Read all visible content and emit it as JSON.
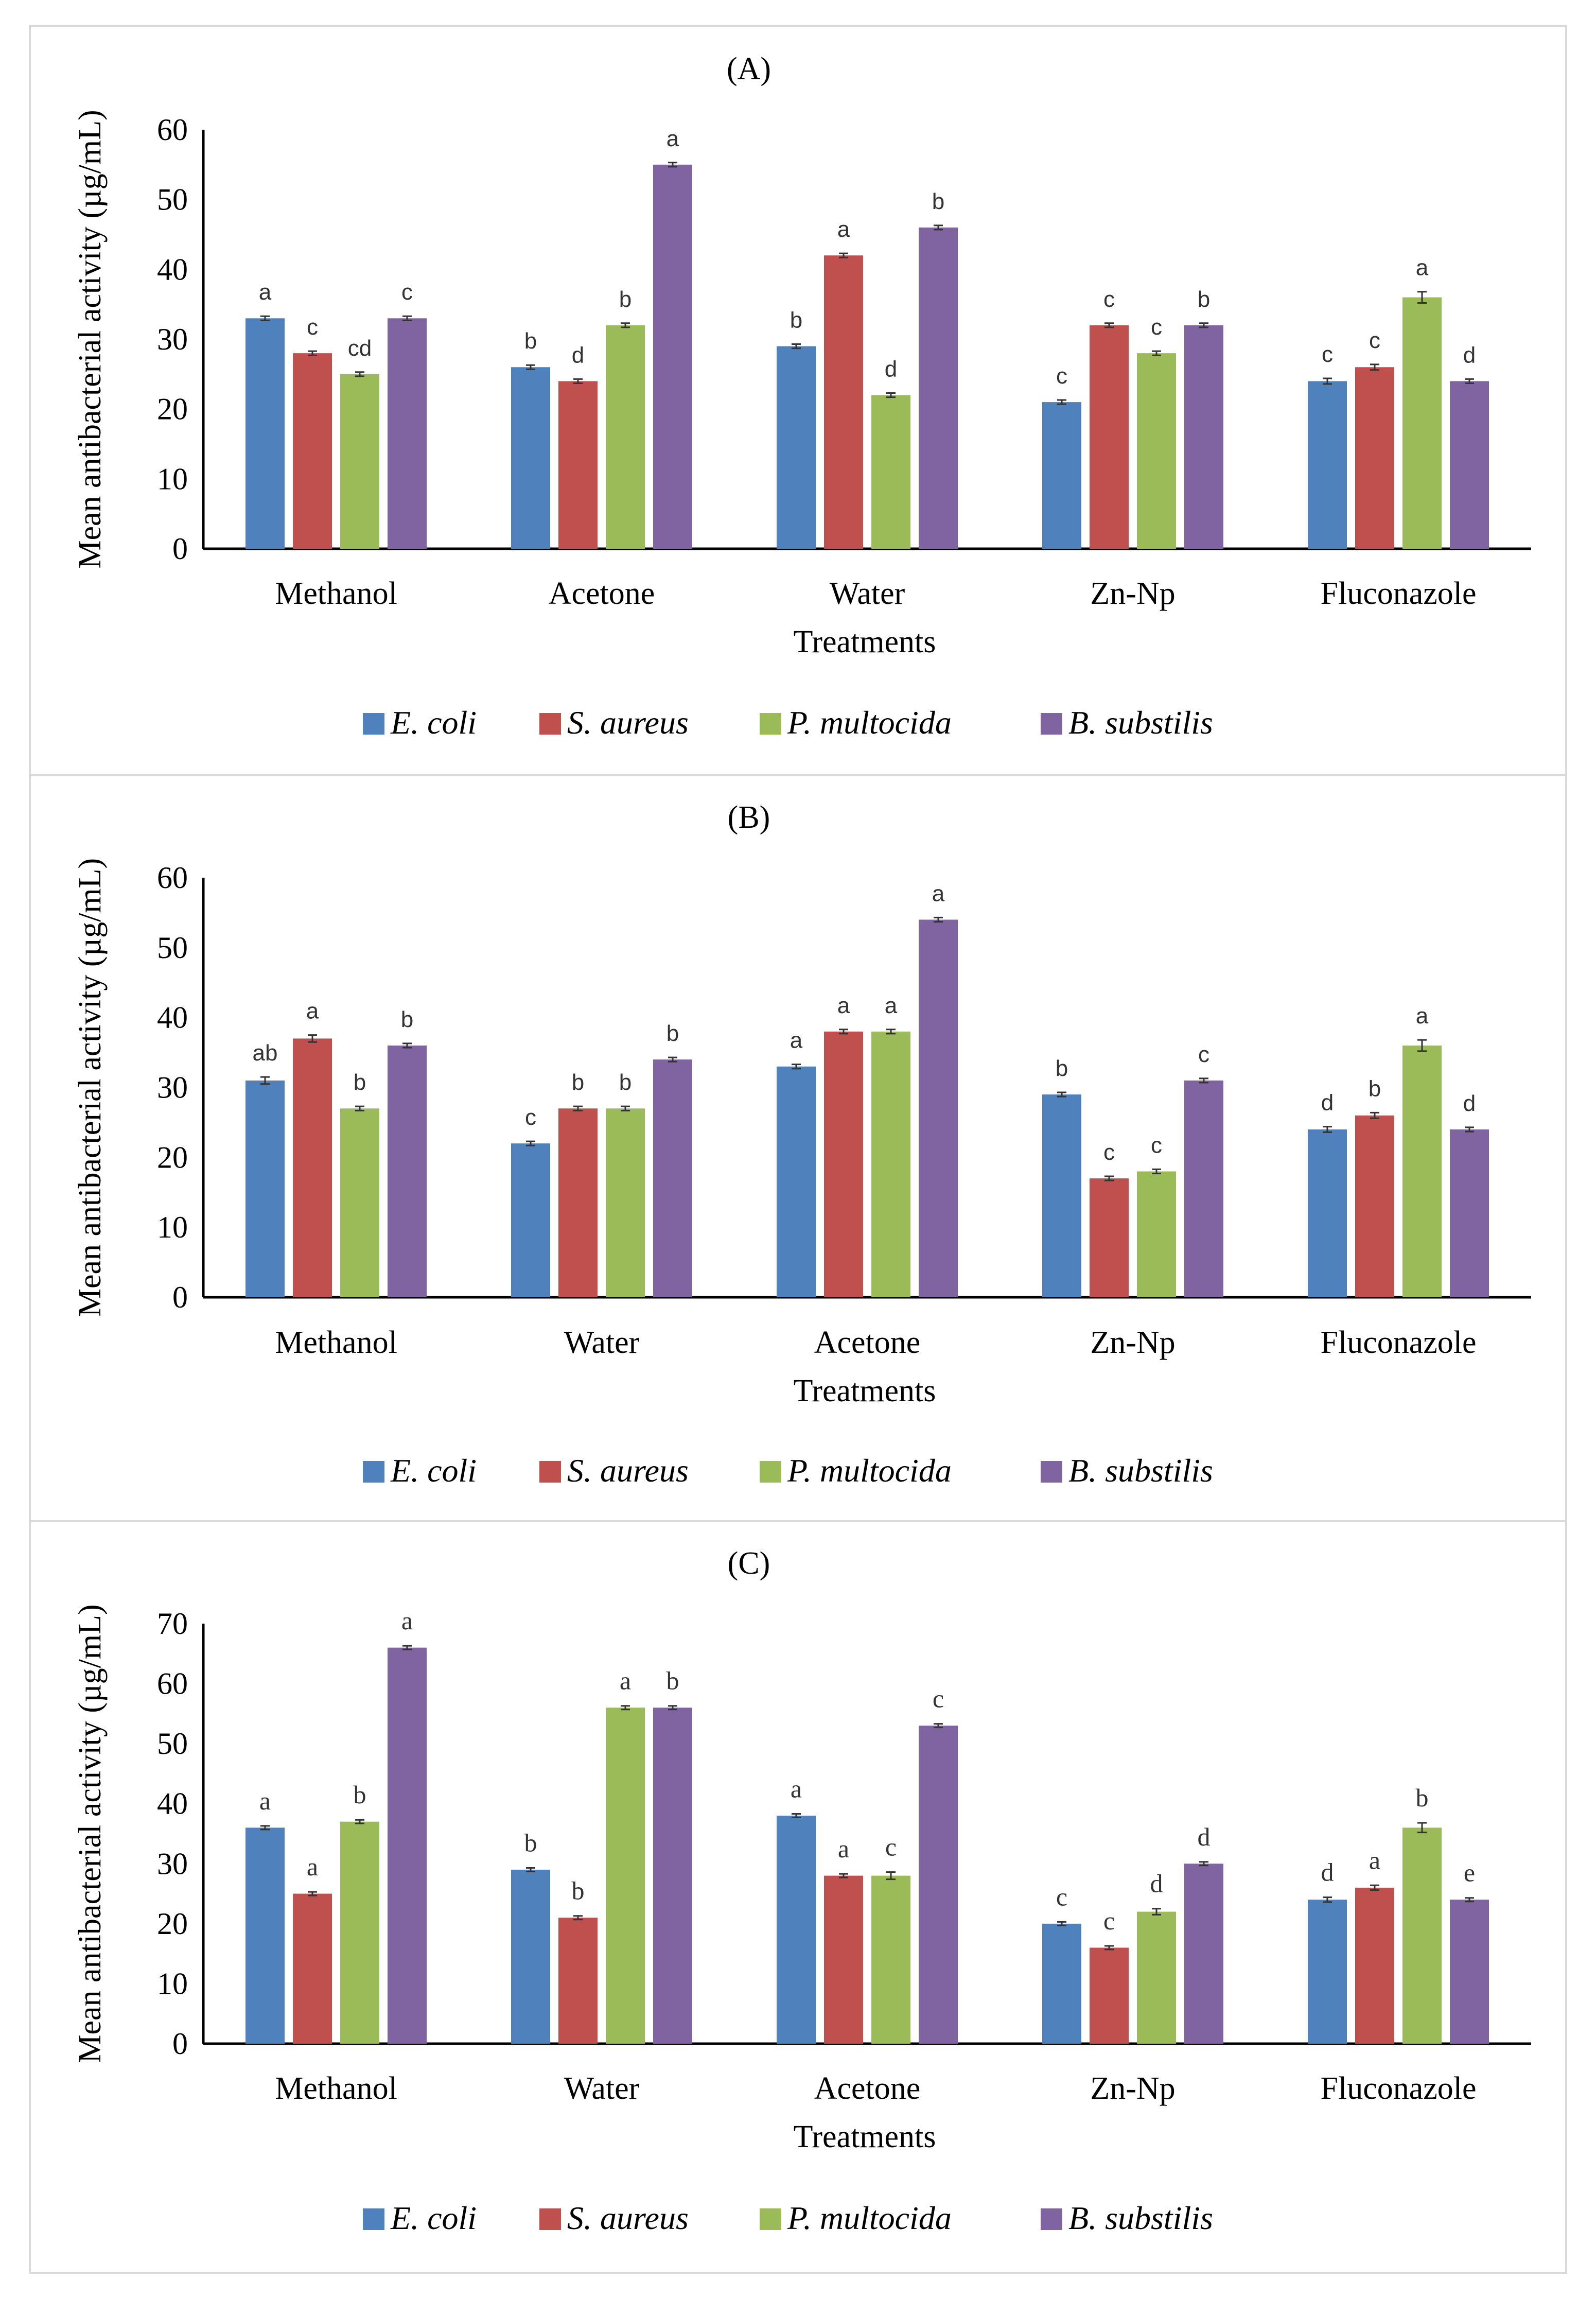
{
  "chart_data": [
    {
      "type": "bar",
      "title": "(A)",
      "xlabel": "Treatments",
      "ylabel": "Mean antibacterial activity (µg/mL)",
      "ylim": [
        0,
        60
      ],
      "yticks": [
        "0",
        "10",
        "20",
        "30",
        "40",
        "50",
        "60"
      ],
      "categories": [
        "Methanol",
        "Acetone",
        "Water",
        "Zn-Np",
        "Fluconazole"
      ],
      "series": [
        {
          "name": "E. coli",
          "color": "#4f81bd",
          "values": [
            33,
            26,
            29,
            21,
            24
          ],
          "errors": [
            0.3,
            0.3,
            0.3,
            0.3,
            0.4
          ],
          "labels": [
            "a",
            "b",
            "b",
            "c",
            "c"
          ]
        },
        {
          "name": "S. aureus",
          "color": "#c0504d",
          "values": [
            28,
            24,
            42,
            32,
            26
          ],
          "errors": [
            0.3,
            0.3,
            0.3,
            0.3,
            0.4
          ],
          "labels": [
            "c",
            "d",
            "a",
            "c",
            "c"
          ]
        },
        {
          "name": "P. multocida",
          "color": "#9bbb59",
          "values": [
            25,
            32,
            22,
            28,
            36
          ],
          "errors": [
            0.3,
            0.3,
            0.3,
            0.3,
            0.8
          ],
          "labels": [
            "cd",
            "b",
            "d",
            "c",
            "a"
          ]
        },
        {
          "name": "B. substilis",
          "color": "#8064a2",
          "values": [
            33,
            55,
            46,
            32,
            24
          ],
          "errors": [
            0.3,
            0.3,
            0.3,
            0.3,
            0.3
          ],
          "labels": [
            "c",
            "a",
            "b",
            "b",
            "d"
          ]
        }
      ],
      "legend_position": "bottom"
    },
    {
      "type": "bar",
      "title": "(B)",
      "xlabel": "Treatments",
      "ylabel": "Mean antibacterial activity (µg/mL)",
      "ylim": [
        0,
        60
      ],
      "yticks": [
        "0",
        "10",
        "20",
        "30",
        "40",
        "50",
        "60"
      ],
      "categories": [
        "Methanol",
        "Water",
        "Acetone",
        "Zn-Np",
        "Fluconazole"
      ],
      "series": [
        {
          "name": "E. coli",
          "color": "#4f81bd",
          "values": [
            31,
            22,
            33,
            29,
            24
          ],
          "errors": [
            0.5,
            0.3,
            0.3,
            0.3,
            0.4
          ],
          "labels": [
            "ab",
            "c",
            "a",
            "b",
            "d"
          ]
        },
        {
          "name": "S. aureus",
          "color": "#c0504d",
          "values": [
            37,
            27,
            38,
            17,
            26
          ],
          "errors": [
            0.5,
            0.3,
            0.3,
            0.3,
            0.4
          ],
          "labels": [
            "a",
            "b",
            "a",
            "c",
            "b"
          ]
        },
        {
          "name": "P. multocida",
          "color": "#9bbb59",
          "values": [
            27,
            27,
            38,
            18,
            36
          ],
          "errors": [
            0.3,
            0.3,
            0.3,
            0.3,
            0.8
          ],
          "labels": [
            "b",
            "b",
            "a",
            "c",
            "a"
          ]
        },
        {
          "name": "B. substilis",
          "color": "#8064a2",
          "values": [
            36,
            34,
            54,
            31,
            24
          ],
          "errors": [
            0.3,
            0.3,
            0.3,
            0.3,
            0.3
          ],
          "labels": [
            "b",
            "b",
            "a",
            "c",
            "d"
          ]
        }
      ],
      "legend_position": "bottom"
    },
    {
      "type": "bar",
      "title": "(C)",
      "xlabel": "Treatments",
      "ylabel": "Mean antibacterial activity (µg/mL)",
      "ylim": [
        0,
        70
      ],
      "yticks": [
        "0",
        "10",
        "20",
        "30",
        "40",
        "50",
        "60",
        "70"
      ],
      "categories": [
        "Methanol",
        "Water",
        "Acetone",
        "Zn-Np",
        "Fluconazole"
      ],
      "series": [
        {
          "name": "E. coli",
          "color": "#4f81bd",
          "values": [
            36,
            29,
            38,
            20,
            24
          ],
          "errors": [
            0.3,
            0.3,
            0.3,
            0.3,
            0.4
          ],
          "labels": [
            "a",
            "b",
            "a",
            "c",
            "d"
          ]
        },
        {
          "name": "S. aureus",
          "color": "#c0504d",
          "values": [
            25,
            21,
            28,
            16,
            26
          ],
          "errors": [
            0.3,
            0.3,
            0.3,
            0.3,
            0.4
          ],
          "labels": [
            "a",
            "b",
            "a",
            "c",
            "a"
          ]
        },
        {
          "name": "P. multocida",
          "color": "#9bbb59",
          "values": [
            37,
            56,
            28,
            22,
            36
          ],
          "errors": [
            0.3,
            0.3,
            0.6,
            0.5,
            0.8
          ],
          "labels": [
            "b",
            "a",
            "c",
            "d",
            "b"
          ]
        },
        {
          "name": "B. substilis",
          "color": "#8064a2",
          "values": [
            66,
            56,
            53,
            30,
            24
          ],
          "errors": [
            0.3,
            0.3,
            0.3,
            0.3,
            0.3
          ],
          "labels": [
            "a",
            "b",
            "c",
            "d",
            "e"
          ]
        }
      ],
      "legend_position": "bottom"
    }
  ]
}
